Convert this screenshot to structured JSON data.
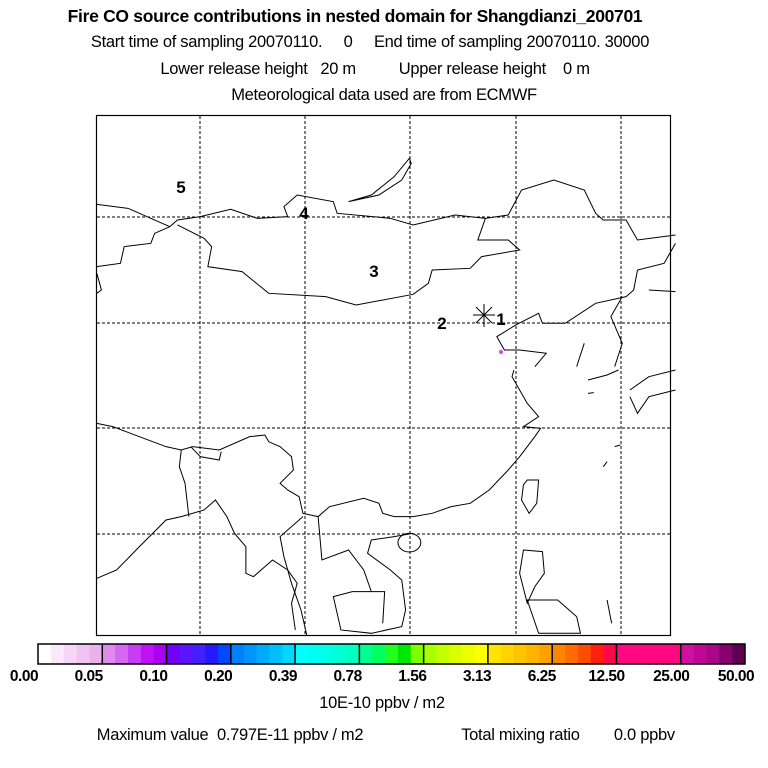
{
  "header": {
    "title": "Fire CO source contributions in nested domain for Shangdianzi_200701",
    "sampling_line": "Start time of sampling 20070110.     0     End time of sampling 20070110. 30000",
    "release_line": "Lower release height   20 m          Upper release height    0 m",
    "met_line": "Meteorological data used are from ECMWF"
  },
  "map": {
    "site_marker_icon": "asterisk-receptor-marker",
    "cluster_labels": [
      "1",
      "2",
      "3",
      "4",
      "5"
    ],
    "max_cell_color": "#e040f0"
  },
  "colorbar": {
    "labels": [
      "0.00",
      "0.05",
      "0.10",
      "0.20",
      "0.39",
      "0.78",
      "1.56",
      "3.13",
      "6.25",
      "12.50",
      "25.00",
      "50.00"
    ],
    "colors": [
      [
        "#ffffff",
        "#fbe8fb",
        "#f6d6f6",
        "#f1c3f1",
        "#ebb1eb"
      ],
      [
        "#e08af0",
        "#d468f2",
        "#c83cf4",
        "#bf10f6",
        "#a800f0"
      ],
      [
        "#7000ff",
        "#5a14ff",
        "#4420ff",
        "#2818ff",
        "#0048ff"
      ],
      [
        "#0080ff",
        "#0094ff",
        "#00aaff",
        "#00c0ff",
        "#00d8ff"
      ],
      [
        "#00ffff",
        "#00fff2",
        "#00ffe4",
        "#00ffd4",
        "#00ffc0"
      ],
      [
        "#00ff90",
        "#00ff60",
        "#20ff20",
        "#00e800",
        "#80ff00"
      ],
      [
        "#a8ff00",
        "#c4ff00",
        "#dcff00",
        "#eeff00",
        "#ffff00"
      ],
      [
        "#ffe400",
        "#ffd400",
        "#ffc400",
        "#ffb400",
        "#ffa000"
      ],
      [
        "#ff8400",
        "#ff6c00",
        "#ff4c00",
        "#ff2010",
        "#ff0848"
      ],
      [
        "#ff0880",
        "#ff0880",
        "#ff0880",
        "#ff0880",
        "#ff0880"
      ],
      [
        "#d010a0",
        "#c00896",
        "#a80888",
        "#880070",
        "#600050"
      ]
    ],
    "unit": "10E-10 ppbv / m2"
  },
  "footer": {
    "max_value": "Maximum value  0.797E-11 ppbv / m2",
    "total_mixing": "Total mixing ratio        0.0 ppbv"
  }
}
